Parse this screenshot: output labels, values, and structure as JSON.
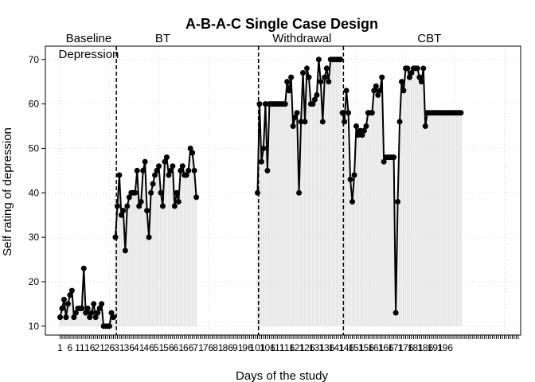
{
  "chart_data": {
    "type": "line",
    "title": "A-B-A-C Single Case Design",
    "xlabel": "Days of the study",
    "ylabel": "Self rating of depression",
    "xlim": [
      -1,
      233
    ],
    "ylim": [
      8,
      73
    ],
    "grid": true,
    "y_ticks": [
      10,
      20,
      30,
      40,
      50,
      60,
      70
    ],
    "x_tick_labels": [
      "1",
      "6",
      "11",
      "16",
      "21",
      "26",
      "31",
      "36",
      "41",
      "46",
      "51",
      "56",
      "61",
      "66",
      "71",
      "76",
      "81",
      "86",
      "91",
      "96",
      "101",
      "106",
      "111",
      "116",
      "121",
      "126",
      "131",
      "136",
      "141",
      "146",
      "151",
      "156",
      "161",
      "166",
      "171",
      "176",
      "181",
      "186",
      "191",
      "196"
    ],
    "phases": [
      {
        "name": "Baseline",
        "name2": "Depression",
        "start": 0,
        "end": 29
      },
      {
        "name": "BT",
        "start": 29,
        "end": 101
      },
      {
        "name": "Withdrawal",
        "start": 101,
        "end": 144
      },
      {
        "name": "CBT",
        "start": 144,
        "end": 230
      }
    ],
    "phase_dividers": [
      28.5,
      100.5,
      143.5
    ],
    "series": [
      {
        "x_start": 1,
        "values": [
          12,
          14,
          16,
          12,
          15,
          17,
          18,
          12,
          13,
          14,
          14,
          14,
          23,
          13,
          14,
          12,
          13,
          15,
          12,
          13,
          14,
          15,
          10,
          10,
          10,
          10,
          13,
          12
        ]
      },
      {
        "x_start": 29,
        "values": [
          30,
          37,
          44,
          35,
          36,
          27,
          37,
          39,
          40,
          40,
          40,
          45,
          37,
          38,
          45,
          47,
          36,
          30,
          40,
          42,
          44,
          45,
          46,
          40,
          37,
          47,
          48,
          44,
          45,
          46,
          37,
          40,
          38,
          45,
          46,
          44,
          44,
          45,
          50,
          49,
          45,
          39
        ]
      },
      {
        "x_start": 101,
        "values": [
          40,
          60,
          47,
          50,
          60,
          45,
          60,
          60,
          60,
          60,
          60,
          60,
          60,
          60,
          60,
          65,
          63,
          66,
          55,
          57,
          58,
          40,
          56,
          67,
          56,
          68,
          66,
          60,
          60,
          61,
          62,
          70,
          65,
          56,
          66,
          68,
          65,
          70,
          70,
          70,
          70,
          70,
          70
        ]
      },
      {
        "x_start": 144,
        "values": [
          58,
          56,
          63,
          58,
          43,
          38,
          44,
          55,
          53,
          54,
          53,
          54,
          55,
          58,
          58,
          58,
          63,
          64,
          62,
          63,
          66,
          47,
          48,
          48,
          48,
          48,
          48,
          13,
          38,
          56,
          65,
          63,
          68,
          68,
          66,
          67,
          68,
          68,
          68,
          66,
          65,
          68,
          55,
          58,
          58,
          58,
          58,
          58,
          58,
          58,
          58,
          58,
          58,
          58,
          58,
          58,
          58,
          58,
          58,
          58,
          58
        ]
      }
    ]
  }
}
